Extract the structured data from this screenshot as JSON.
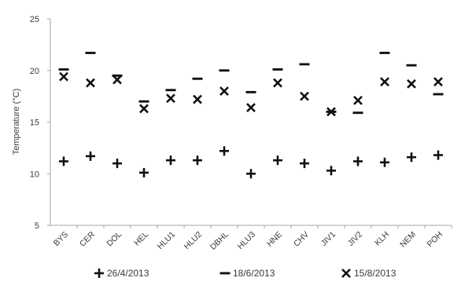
{
  "chart_data": {
    "type": "scatter",
    "ylabel": "Temperature (°C)",
    "ylim": [
      5,
      25
    ],
    "yticks": [
      5,
      10,
      15,
      20,
      25
    ],
    "grid": false,
    "legend_position": "bottom",
    "categories": [
      "BYS",
      "CER",
      "DOL",
      "HEL",
      "HLU1",
      "HLU2",
      "DBHL",
      "HLU3",
      "HNE",
      "CHV",
      "JIV1",
      "JIV2",
      "KLH",
      "NEM",
      "POH"
    ],
    "series": [
      {
        "name": "26/4/2013",
        "marker": "plus",
        "values": [
          11.2,
          11.7,
          11.0,
          10.1,
          11.3,
          11.3,
          12.2,
          10.0,
          11.3,
          11.0,
          10.3,
          11.2,
          11.1,
          11.6,
          11.8
        ]
      },
      {
        "name": "18/6/2013",
        "marker": "dash",
        "values": [
          20.1,
          21.7,
          19.5,
          17.0,
          18.1,
          19.2,
          20.0,
          17.9,
          20.1,
          20.6,
          16.0,
          15.9,
          21.7,
          20.5,
          17.7
        ]
      },
      {
        "name": "15/8/2013",
        "marker": "cross",
        "values": [
          19.4,
          18.8,
          19.1,
          16.3,
          17.3,
          17.2,
          18.0,
          16.4,
          18.8,
          17.5,
          16.0,
          17.1,
          18.9,
          18.7,
          18.9
        ]
      }
    ],
    "legend_labels": [
      "26/4/2013",
      "18/6/2013",
      "15/8/2013"
    ]
  }
}
